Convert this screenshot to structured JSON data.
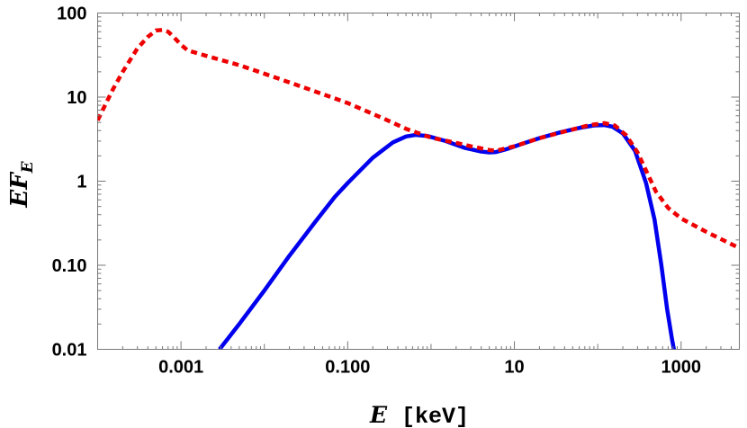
{
  "chart_data": {
    "type": "line",
    "xscale": "log",
    "yscale": "log",
    "xlim": [
      0.0001,
      5000
    ],
    "ylim": [
      0.01,
      100
    ],
    "grid": false,
    "x_ticks": [
      {
        "value": 0.001,
        "label": "0.001"
      },
      {
        "value": 0.1,
        "label": "0.100"
      },
      {
        "value": 10,
        "label": "10"
      },
      {
        "value": 1000,
        "label": "1000"
      }
    ],
    "y_ticks": [
      {
        "value": 0.01,
        "label": "0.01"
      },
      {
        "value": 0.1,
        "label": "0.10"
      },
      {
        "value": 1,
        "label": "1"
      },
      {
        "value": 10,
        "label": "10"
      },
      {
        "value": 100,
        "label": "100"
      }
    ],
    "xlabel_symbol": "E",
    "xlabel_unit": "[keV]",
    "ylabel_main": "EF",
    "ylabel_sub": "E",
    "series": [
      {
        "style": "solid",
        "color": "#0000ee",
        "points": [
          [
            0.0029,
            0.01
          ],
          [
            0.005,
            0.02
          ],
          [
            0.01,
            0.05
          ],
          [
            0.02,
            0.13
          ],
          [
            0.04,
            0.32
          ],
          [
            0.07,
            0.65
          ],
          [
            0.1,
            0.95
          ],
          [
            0.2,
            1.9
          ],
          [
            0.35,
            2.9
          ],
          [
            0.5,
            3.4
          ],
          [
            0.65,
            3.55
          ],
          [
            0.9,
            3.45
          ],
          [
            1.5,
            3.0
          ],
          [
            2.5,
            2.5
          ],
          [
            4.0,
            2.25
          ],
          [
            5.0,
            2.2
          ],
          [
            6.0,
            2.22
          ],
          [
            8.0,
            2.4
          ],
          [
            12.0,
            2.75
          ],
          [
            20.0,
            3.25
          ],
          [
            35.0,
            3.8
          ],
          [
            60.0,
            4.3
          ],
          [
            90.0,
            4.6
          ],
          [
            120.0,
            4.65
          ],
          [
            150.0,
            4.45
          ],
          [
            200.0,
            3.7
          ],
          [
            280.0,
            2.3
          ],
          [
            380.0,
            0.95
          ],
          [
            480.0,
            0.35
          ],
          [
            580.0,
            0.1
          ],
          [
            680.0,
            0.03
          ],
          [
            780.0,
            0.013
          ],
          [
            820.0,
            0.01
          ]
        ]
      },
      {
        "style": "dashed",
        "color": "#ee0000",
        "points": [
          [
            0.0001,
            5.3
          ],
          [
            0.00015,
            12.0
          ],
          [
            0.0002,
            20.0
          ],
          [
            0.0003,
            38.0
          ],
          [
            0.0004,
            52.0
          ],
          [
            0.0005,
            62.0
          ],
          [
            0.0006,
            63.0
          ],
          [
            0.0007,
            60.0
          ],
          [
            0.0008,
            53.0
          ],
          [
            0.001,
            42.0
          ],
          [
            0.0012,
            36.0
          ],
          [
            0.002,
            31.0
          ],
          [
            0.005,
            24.0
          ],
          [
            0.01,
            19.0
          ],
          [
            0.03,
            13.0
          ],
          [
            0.1,
            8.5
          ],
          [
            0.3,
            5.3
          ],
          [
            0.5,
            4.2
          ],
          [
            1.0,
            3.3
          ],
          [
            2.0,
            2.85
          ],
          [
            3.0,
            2.6
          ],
          [
            5.0,
            2.35
          ],
          [
            6.0,
            2.3
          ],
          [
            10.0,
            2.6
          ],
          [
            20.0,
            3.25
          ],
          [
            40.0,
            3.9
          ],
          [
            80.0,
            4.65
          ],
          [
            120.0,
            4.9
          ],
          [
            160.0,
            4.6
          ],
          [
            220.0,
            3.5
          ],
          [
            300.0,
            2.2
          ],
          [
            400.0,
            1.2
          ],
          [
            500.0,
            0.75
          ],
          [
            700.0,
            0.48
          ],
          [
            1000.0,
            0.36
          ],
          [
            2000.0,
            0.25
          ],
          [
            5000.0,
            0.16
          ]
        ]
      }
    ]
  }
}
